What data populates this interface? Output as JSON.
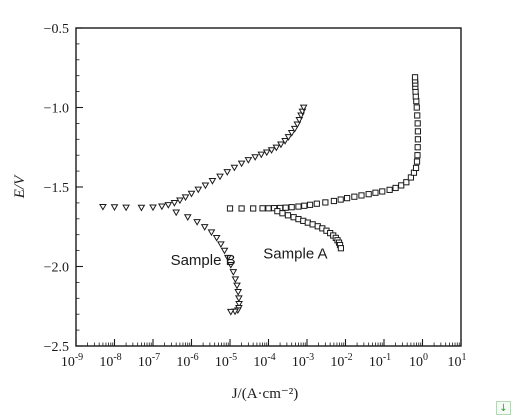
{
  "chart_data": {
    "type": "scatter",
    "title": "",
    "xlabel": "J/(A·cm⁻²)",
    "ylabel": "E/V",
    "x_scale": "log",
    "xlim": [
      1e-09,
      10
    ],
    "ylim": [
      -2.5,
      -0.5
    ],
    "x_ticks": [
      1e-09,
      1e-08,
      1e-07,
      1e-06,
      1e-05,
      0.0001,
      0.001,
      0.01,
      0.1,
      1,
      10
    ],
    "x_tick_labels": [
      {
        "base": "10",
        "exp": "-9"
      },
      {
        "base": "10",
        "exp": "-8"
      },
      {
        "base": "10",
        "exp": "-7"
      },
      {
        "base": "10",
        "exp": "-6"
      },
      {
        "base": "10",
        "exp": "-5"
      },
      {
        "base": "10",
        "exp": "-4"
      },
      {
        "base": "10",
        "exp": "-3"
      },
      {
        "base": "10",
        "exp": "-2"
      },
      {
        "base": "10",
        "exp": "-1"
      },
      {
        "base": "10",
        "exp": "0"
      },
      {
        "base": "10",
        "exp": "1"
      }
    ],
    "y_ticks": [
      -0.5,
      -1.0,
      -1.5,
      -2.0,
      -2.5
    ],
    "y_tick_labels": [
      "−0.5",
      "−1.0",
      "−1.5",
      "−2.0",
      "−2.5"
    ],
    "grid": false,
    "legend": "none",
    "annotations": [
      {
        "text": "Sample B",
        "x": 2e-06,
        "y": -1.99
      },
      {
        "text": "Sample A",
        "x": 0.0005,
        "y": -1.95
      }
    ],
    "series": [
      {
        "name": "Sample A",
        "marker": "square",
        "color": "#1a1a1a",
        "x": [
          1e-05,
          2e-05,
          4e-05,
          7e-05,
          0.0001,
          0.00014,
          0.0002,
          0.00028,
          0.0004,
          0.0006,
          0.00085,
          0.0012,
          0.0018,
          0.003,
          0.005,
          0.0075,
          0.011,
          0.017,
          0.026,
          0.04,
          0.06,
          0.09,
          0.14,
          0.2,
          0.28,
          0.38,
          0.5,
          0.6,
          0.68,
          0.72,
          0.74,
          0.75,
          0.76,
          0.76,
          0.75,
          0.73,
          0.71,
          0.69,
          0.67,
          0.66,
          0.65,
          0.65,
          0.64,
          0.64,
          0.00017,
          0.00023,
          0.00032,
          0.00045,
          0.0006,
          0.0008,
          0.00105,
          0.0014,
          0.0019,
          0.0025,
          0.0032,
          0.004,
          0.0048,
          0.0056,
          0.0062,
          0.0068,
          0.0072,
          0.0076
        ],
        "y": [
          -1.635,
          -1.635,
          -1.635,
          -1.634,
          -1.634,
          -1.633,
          -1.632,
          -1.63,
          -1.627,
          -1.623,
          -1.618,
          -1.612,
          -1.605,
          -1.597,
          -1.588,
          -1.579,
          -1.57,
          -1.561,
          -1.553,
          -1.545,
          -1.536,
          -1.528,
          -1.518,
          -1.506,
          -1.49,
          -1.47,
          -1.44,
          -1.41,
          -1.38,
          -1.34,
          -1.3,
          -1.25,
          -1.2,
          -1.15,
          -1.1,
          -1.05,
          -1.0,
          -0.96,
          -0.93,
          -0.9,
          -0.87,
          -0.85,
          -0.83,
          -0.81,
          -1.652,
          -1.665,
          -1.678,
          -1.69,
          -1.702,
          -1.713,
          -1.724,
          -1.735,
          -1.747,
          -1.76,
          -1.775,
          -1.79,
          -1.805,
          -1.82,
          -1.835,
          -1.85,
          -1.865,
          -1.885
        ]
      },
      {
        "name": "Sample B",
        "marker": "triangle-down",
        "color": "#1a1a1a",
        "x": [
          5e-09,
          1e-08,
          2e-08,
          5e-08,
          1e-07,
          1.7e-07,
          2.5e-07,
          3.6e-07,
          5e-07,
          7e-07,
          1e-06,
          1.5e-06,
          2.3e-06,
          3.5e-06,
          5.5e-06,
          8.5e-06,
          1.3e-05,
          2e-05,
          3e-05,
          4.5e-05,
          6.5e-05,
          9e-05,
          0.00012,
          0.00016,
          0.00021,
          0.00027,
          0.00033,
          0.0004,
          0.00048,
          0.00056,
          0.00063,
          0.0007,
          0.00076,
          0.00082,
          4e-07,
          8e-07,
          1.4e-06,
          2.2e-06,
          3.3e-06,
          4.5e-06,
          5.8e-06,
          7.2e-06,
          8.8e-06,
          1.05e-05,
          1.22e-05,
          1.38e-05,
          1.52e-05,
          1.63e-05,
          1.7e-05,
          1.72e-05,
          1.7e-05,
          1.6e-05,
          1.35e-05,
          1.05e-05
        ],
        "y": [
          -1.625,
          -1.627,
          -1.629,
          -1.63,
          -1.628,
          -1.622,
          -1.613,
          -1.6,
          -1.584,
          -1.565,
          -1.542,
          -1.516,
          -1.49,
          -1.462,
          -1.434,
          -1.406,
          -1.378,
          -1.352,
          -1.33,
          -1.312,
          -1.296,
          -1.282,
          -1.268,
          -1.252,
          -1.232,
          -1.21,
          -1.186,
          -1.16,
          -1.134,
          -1.106,
          -1.078,
          -1.05,
          -1.025,
          -1.0,
          -1.66,
          -1.69,
          -1.72,
          -1.752,
          -1.785,
          -1.82,
          -1.86,
          -1.9,
          -1.945,
          -1.99,
          -2.035,
          -2.08,
          -2.12,
          -2.16,
          -2.2,
          -2.235,
          -2.26,
          -2.275,
          -2.283,
          -2.285
        ]
      }
    ]
  },
  "ui": {
    "corner_button_glyph": "↓"
  }
}
